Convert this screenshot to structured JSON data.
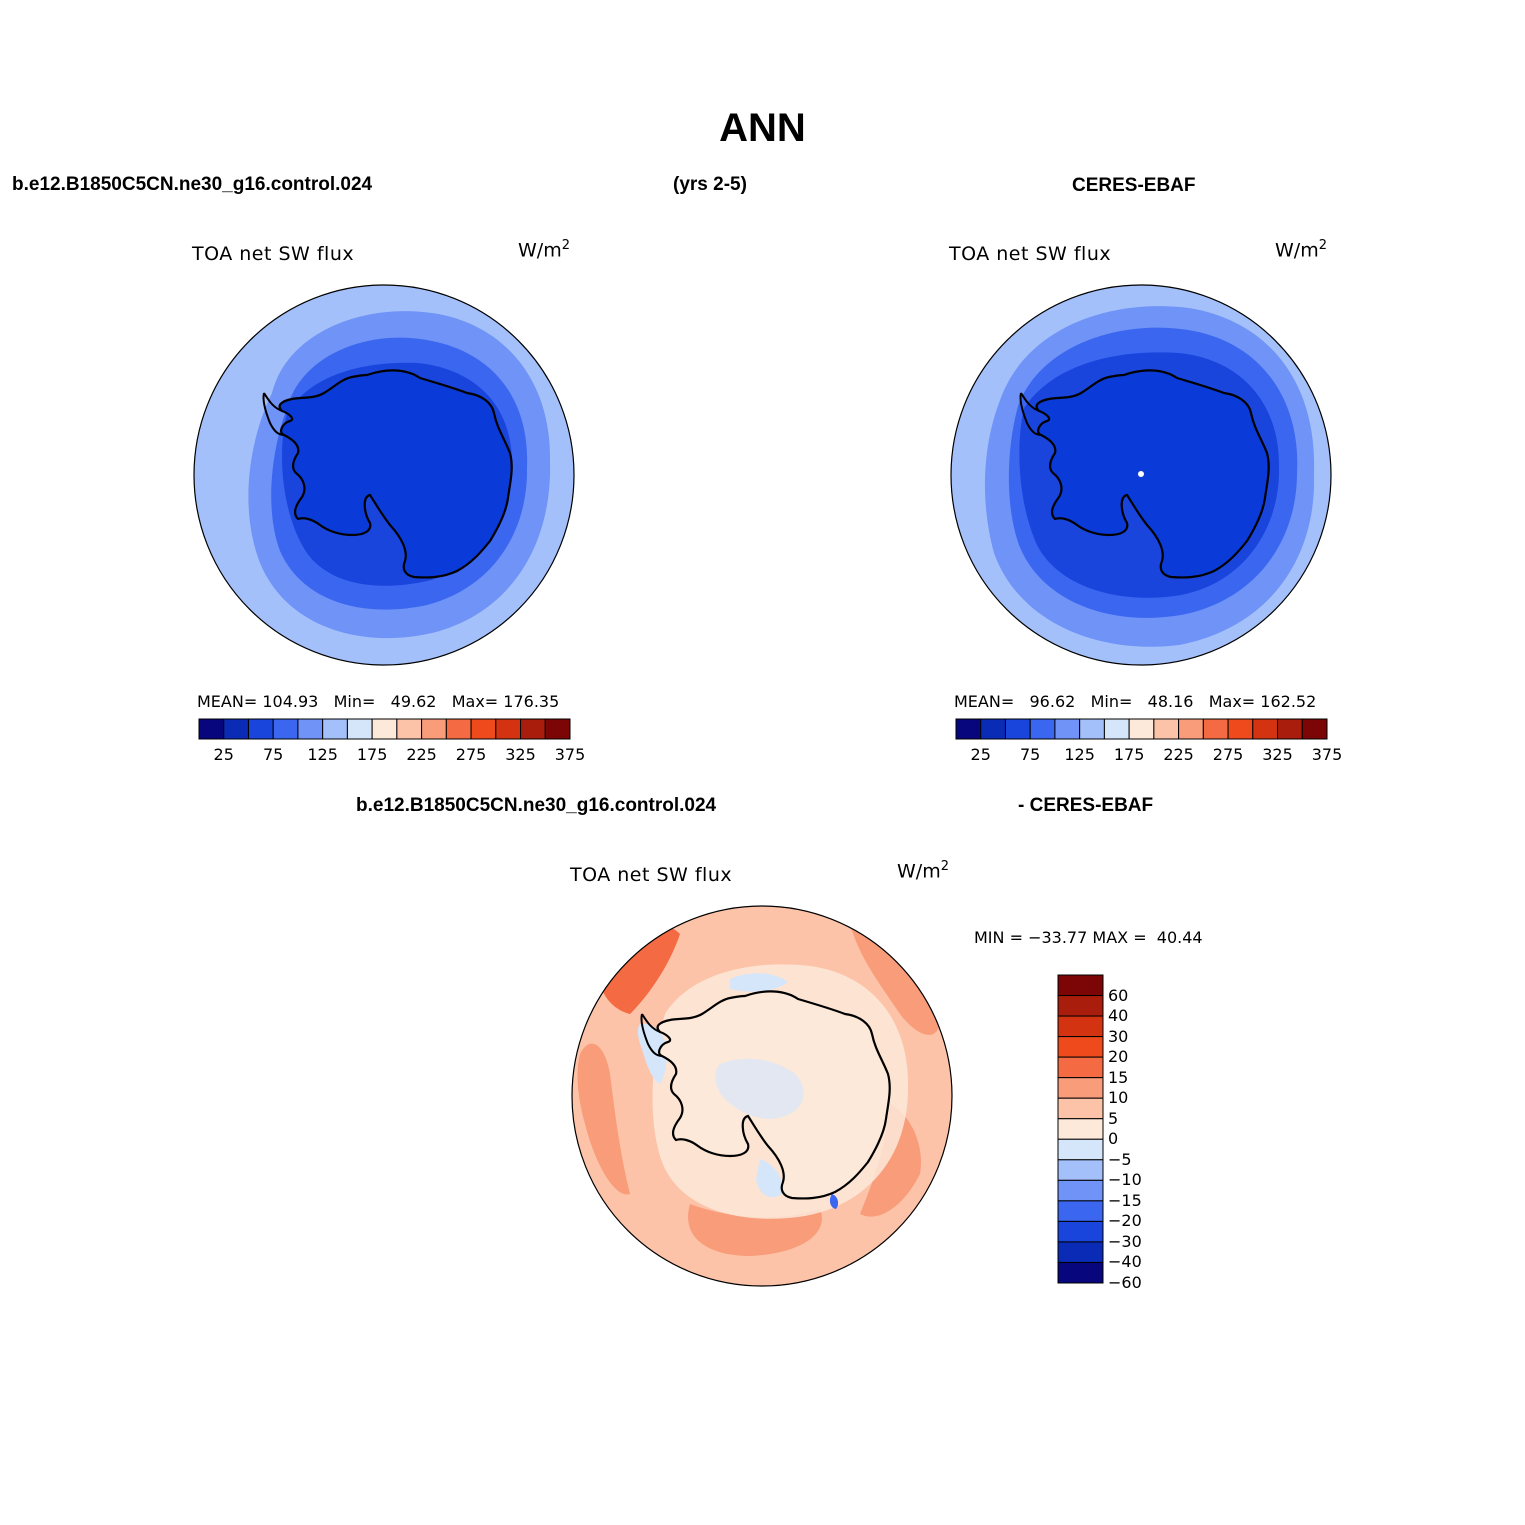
{
  "figure": {
    "title": "ANN"
  },
  "headers": {
    "top_left": "b.e12.B1850C5CN.ne30_g16.control.024",
    "top_middle": "(yrs 2-5)",
    "top_right": "CERES-EBAF",
    "bottom_left": "b.e12.B1850C5CN.ne30_g16.control.024",
    "bottom_right": "- CERES-EBAF"
  },
  "panels": [
    {
      "id": "model",
      "variable": "TOA net SW flux",
      "units": "W/m",
      "units_sup": "2",
      "stats": {
        "mean_label": "MEAN=",
        "mean": "104.93",
        "min_label": "Min=",
        "min": "49.62",
        "max_label": "Max=",
        "max": "176.35"
      }
    },
    {
      "id": "obs",
      "variable": "TOA net SW flux",
      "units": "W/m",
      "units_sup": "2",
      "stats": {
        "mean_label": "MEAN=",
        "mean": "96.62",
        "min_label": "Min=",
        "min": "48.16",
        "max_label": "Max=",
        "max": "162.52"
      }
    },
    {
      "id": "difference",
      "variable": "TOA net SW flux",
      "units": "W/m",
      "units_sup": "2",
      "stats": {
        "min_label": "MIN =",
        "min": "−33.77",
        "max_label": "MAX =",
        "max": "40.44"
      }
    }
  ],
  "colorbar_main": {
    "tick_labels": [
      "25",
      "75",
      "125",
      "175",
      "225",
      "275",
      "325",
      "375"
    ],
    "colors": [
      "#08067c",
      "#0a2bb5",
      "#1945dd",
      "#3a66f0",
      "#6f93f6",
      "#a4c0fa",
      "#d5e6fb",
      "#fde9d9",
      "#fcc3a8",
      "#f89c7a",
      "#f46a42",
      "#ee4a1c",
      "#d43311",
      "#a81d0b",
      "#7c0606"
    ]
  },
  "colorbar_diff": {
    "tick_labels": [
      "60",
      "40",
      "30",
      "20",
      "15",
      "10",
      "5",
      "0",
      "−5",
      "−10",
      "−15",
      "−20",
      "−30",
      "−40",
      "−60"
    ],
    "colors": [
      "#7c0606",
      "#a81d0b",
      "#d43311",
      "#ee4a1c",
      "#f46a42",
      "#f89c7a",
      "#fcc3a8",
      "#fde9d9",
      "#d5e6fb",
      "#a4c0fa",
      "#6f93f6",
      "#3a66f0",
      "#1945dd",
      "#0a2bb5",
      "#08067c"
    ]
  },
  "map_colors": {
    "model": [
      "#a4c0fa",
      "#6f93f6",
      "#3a66f0",
      "#1945dd",
      "#0a3ad8"
    ],
    "obs": [
      "#a4c0fa",
      "#6f93f6",
      "#3a66f0",
      "#1945dd",
      "#0a3ad8"
    ],
    "difference": [
      "#fcc3a8",
      "#f89c7a",
      "#fde9d9",
      "#d5e6fb",
      "#f46a42",
      "#3a66f0"
    ],
    "coastline": "#000000"
  }
}
